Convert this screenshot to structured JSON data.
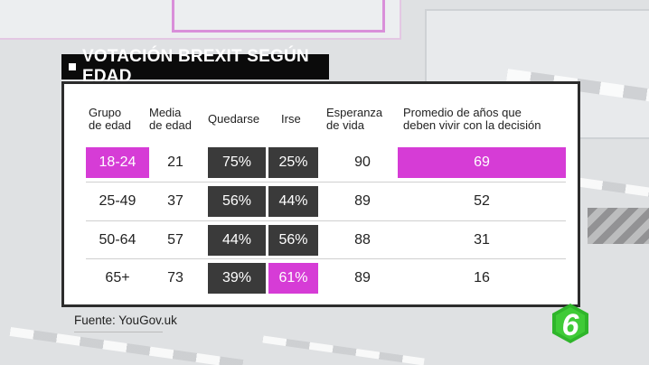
{
  "title": "VOTACIÓN BREXIT SEGÚN EDAD",
  "headers": {
    "group": "Grupo\nde edad",
    "mean_age": "Media\nde edad",
    "remain": "Quedarse",
    "leave": "Irse",
    "life_expectancy": "Esperanza\nde vida",
    "years": "Promedio de años que\ndeben vivir con la decisión"
  },
  "rows": [
    {
      "group": "18-24",
      "mean_age": "21",
      "remain": "75%",
      "leave": "25%",
      "life_expectancy": "90",
      "years": "69",
      "highlight_group": true,
      "highlight_leave": false,
      "highlight_years": true
    },
    {
      "group": "25-49",
      "mean_age": "37",
      "remain": "56%",
      "leave": "44%",
      "life_expectancy": "89",
      "years": "52",
      "highlight_group": false,
      "highlight_leave": false,
      "highlight_years": false
    },
    {
      "group": "50-64",
      "mean_age": "57",
      "remain": "44%",
      "leave": "56%",
      "life_expectancy": "88",
      "years": "31",
      "highlight_group": false,
      "highlight_leave": false,
      "highlight_years": false
    },
    {
      "group": "65+",
      "mean_age": "73",
      "remain": "39%",
      "leave": "61%",
      "life_expectancy": "89",
      "years": "16",
      "highlight_group": false,
      "highlight_leave": true,
      "highlight_years": false
    }
  ],
  "source": "Fuente: YouGov.uk",
  "logo": {
    "icon": "lasexta-6-logo-icon"
  },
  "colors": {
    "highlight": "#d63cd6",
    "dark_cell": "#3a3a3a",
    "logo_green": "#2fb52b"
  }
}
